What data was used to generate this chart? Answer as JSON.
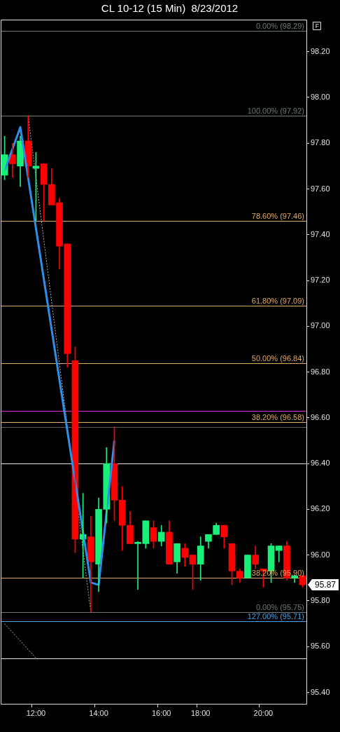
{
  "chart_data": {
    "type": "candlestick",
    "title": "CL 10-12 (15 Min)  8/23/2012",
    "categories": [
      null,
      null,
      null,
      null,
      "12:00",
      null,
      null,
      null,
      null,
      null,
      null,
      null,
      "14:00",
      null,
      null,
      null,
      null,
      null,
      null,
      null,
      "16:00",
      null,
      null,
      null,
      null,
      "18:00",
      null,
      null,
      null,
      null,
      null,
      null,
      null,
      "20:00",
      null,
      null,
      null,
      null,
      null
    ],
    "ohlc": [
      [
        97.66,
        97.83,
        97.64,
        97.75
      ],
      [
        97.75,
        97.8,
        97.65,
        97.71
      ],
      [
        97.7,
        97.83,
        97.61,
        97.81
      ],
      [
        97.81,
        97.92,
        97.65,
        97.7
      ],
      [
        97.69,
        97.76,
        97.46,
        97.7
      ],
      [
        97.71,
        97.71,
        97.46,
        97.62
      ],
      [
        97.62,
        97.69,
        97.53,
        97.53
      ],
      [
        97.54,
        97.56,
        97.25,
        97.35
      ],
      [
        97.36,
        97.36,
        96.82,
        96.88
      ],
      [
        96.85,
        96.91,
        96.01,
        96.07
      ],
      [
        96.07,
        96.27,
        95.9,
        96.09
      ],
      [
        96.08,
        96.17,
        95.75,
        95.97
      ],
      [
        95.96,
        96.25,
        95.84,
        96.2
      ],
      [
        96.2,
        96.47,
        96.14,
        96.4
      ],
      [
        96.4,
        96.56,
        96.15,
        96.24
      ],
      [
        96.24,
        96.3,
        96.02,
        96.13
      ],
      [
        96.13,
        96.19,
        96.05,
        96.05
      ],
      [
        96.05,
        96.06,
        95.85,
        96.05
      ],
      [
        96.05,
        96.15,
        96.03,
        96.15
      ],
      [
        96.12,
        96.15,
        96.03,
        96.06
      ],
      [
        96.06,
        96.13,
        96.04,
        96.1
      ],
      [
        96.1,
        96.15,
        95.96,
        95.96
      ],
      [
        95.97,
        96.05,
        95.92,
        96.05
      ],
      [
        96.03,
        96.05,
        95.95,
        95.99
      ],
      [
        96.0,
        96.0,
        95.85,
        95.96
      ],
      [
        95.96,
        96.08,
        95.89,
        96.04
      ],
      [
        96.06,
        96.09,
        96.03,
        96.09
      ],
      [
        96.09,
        96.14,
        96.09,
        96.13
      ],
      [
        96.13,
        96.13,
        96.03,
        96.08
      ],
      [
        96.05,
        96.05,
        95.87,
        95.93
      ],
      [
        95.93,
        95.94,
        95.88,
        95.9
      ],
      [
        95.9,
        96.0,
        95.9,
        96.0
      ],
      [
        96.0,
        96.04,
        95.94,
        95.96
      ],
      [
        95.94,
        95.94,
        95.86,
        95.93
      ],
      [
        95.93,
        96.05,
        95.88,
        96.04
      ],
      [
        96.02,
        96.04,
        95.97,
        96.04
      ],
      [
        96.04,
        96.06,
        95.89,
        95.9
      ],
      [
        95.9,
        95.91,
        95.88,
        95.91
      ],
      [
        95.91,
        95.91,
        95.86,
        95.87
      ]
    ],
    "colors": [
      "#19f07a",
      "#ff0000",
      "#19f07a",
      "#ff0000",
      "#19f07a",
      "#ff0000",
      "#ff0000",
      "#ff0000",
      "#ff0000",
      "#ff0000",
      "#19f07a",
      "#ff0000",
      "#19f07a",
      "#19f07a",
      "#ff0000",
      "#ff0000",
      "#ff0000",
      "#19f07a",
      "#19f07a",
      "#ff0000",
      "#19f07a",
      "#ff0000",
      "#19f07a",
      "#ff0000",
      "#ff0000",
      "#19f07a",
      "#19f07a",
      "#19f07a",
      "#ff0000",
      "#ff0000",
      "#ff0000",
      "#19f07a",
      "#ff0000",
      "#ff0000",
      "#19f07a",
      "#19f07a",
      "#ff0000",
      "#19f07a",
      "#ff0000"
    ],
    "series": [
      {
        "type": "line",
        "color": "#2f8fe8",
        "line_style": "solid",
        "values": [
          97.68,
          null,
          97.87,
          null,
          null,
          null,
          null,
          null,
          null,
          null,
          null,
          95.88,
          95.87,
          null,
          96.5,
          null,
          null,
          null,
          null,
          null,
          null,
          null,
          null,
          null,
          null,
          null,
          null,
          null,
          null,
          null,
          null,
          null,
          null,
          null,
          null,
          null,
          null,
          null,
          null
        ]
      },
      {
        "type": "line",
        "color": "#b0b0b0",
        "line_style": "dotted",
        "values": [
          null,
          null,
          null,
          97.92,
          null,
          null,
          null,
          null,
          null,
          null,
          null,
          95.75,
          null,
          null,
          null,
          null,
          null,
          null,
          null,
          null,
          null,
          null,
          null,
          null,
          null,
          null,
          null,
          null,
          null,
          null,
          null,
          null,
          null,
          null,
          null,
          null,
          null,
          null,
          null
        ]
      },
      {
        "type": "line",
        "color": "#b0b0b0",
        "line_style": "dotted",
        "values": [
          95.7,
          null,
          null,
          null,
          95.55,
          null,
          null,
          null,
          null,
          null,
          null,
          null,
          null,
          null,
          null,
          null,
          null,
          null,
          null,
          null,
          null,
          null,
          null,
          null,
          null,
          null,
          null,
          null,
          null,
          null,
          null,
          null,
          null,
          null,
          null,
          null,
          null,
          null,
          null
        ]
      }
    ],
    "ylim": [
      95.35,
      98.34
    ],
    "yticks": [
      {
        "value": 95.4,
        "label": "95.40"
      },
      {
        "value": 95.6,
        "label": "95.60"
      },
      {
        "value": 95.8,
        "label": "95.80"
      },
      {
        "value": 96.0,
        "label": "96.00"
      },
      {
        "value": 96.2,
        "label": "96.20"
      },
      {
        "value": 96.4,
        "label": "96.40"
      },
      {
        "value": 96.6,
        "label": "96.60"
      },
      {
        "value": 96.8,
        "label": "96.80"
      },
      {
        "value": 97.0,
        "label": "97.00"
      },
      {
        "value": 97.2,
        "label": "97.20"
      },
      {
        "value": 97.4,
        "label": "97.40"
      },
      {
        "value": 97.6,
        "label": "97.60"
      },
      {
        "value": 97.8,
        "label": "97.80"
      },
      {
        "value": 98.0,
        "label": "98.00"
      },
      {
        "value": 98.2,
        "label": "98.20"
      }
    ],
    "ref_lines": [
      {
        "axis": "y",
        "value": 98.29,
        "label": "0.00% (98.29)",
        "color": "#6a7a7a"
      },
      {
        "axis": "y",
        "value": 97.92,
        "label": "100.00% (97.92)",
        "color": "#6a7a7a"
      },
      {
        "axis": "y",
        "value": 97.46,
        "label": "78.60% (97.46)",
        "color": "#e0a860"
      },
      {
        "axis": "y",
        "value": 97.09,
        "label": "61.80% (97.09)",
        "color": "#e0a860"
      },
      {
        "axis": "y",
        "value": 96.84,
        "label": "50.00% (96.84)",
        "color": "#e0a860"
      },
      {
        "axis": "y",
        "value": 96.63,
        "label": null,
        "color": "#d030d0"
      },
      {
        "axis": "y",
        "value": 96.58,
        "label": "38.20% (96.58)",
        "color": "#e0a860"
      },
      {
        "axis": "y",
        "value": 96.56,
        "label": null,
        "color": "#506060"
      },
      {
        "axis": "y",
        "value": 96.4,
        "label": null,
        "color": "#e0e0e0"
      },
      {
        "axis": "y",
        "value": 95.9,
        "label": "38.20% (95.90)",
        "color": "#e0a860"
      },
      {
        "axis": "y",
        "value": 95.75,
        "label": "0.00% (95.75)",
        "color": "#6a7a7a"
      },
      {
        "axis": "y",
        "value": 95.71,
        "label": "127.00% (95.71)",
        "color": "#4aa0e0"
      },
      {
        "axis": "y",
        "value": 95.55,
        "label": null,
        "color": "#e0e0e0"
      }
    ],
    "annotations": [
      "95.87",
      "F"
    ],
    "grid": false,
    "legend": false,
    "marker": "none"
  }
}
